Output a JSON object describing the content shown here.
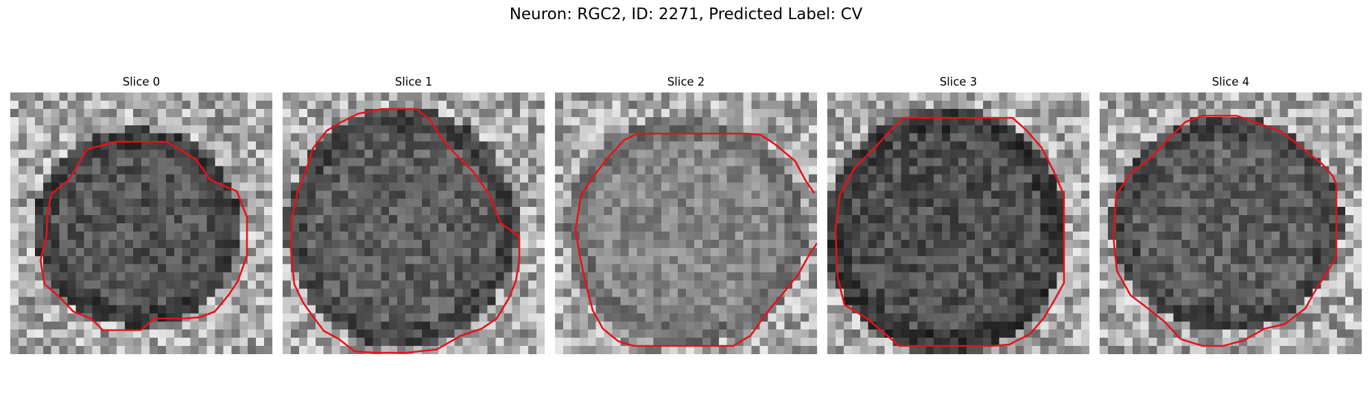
{
  "figure": {
    "title": "Neuron: RGC2, ID: 2271, Predicted Label: CV"
  },
  "panels": [
    {
      "title": "Slice 0"
    },
    {
      "title": "Slice 1"
    },
    {
      "title": "Slice 2"
    },
    {
      "title": "Slice 3"
    },
    {
      "title": "Slice 4"
    }
  ],
  "colors": {
    "contour": "#e8101a",
    "background": "#ffffff"
  }
}
